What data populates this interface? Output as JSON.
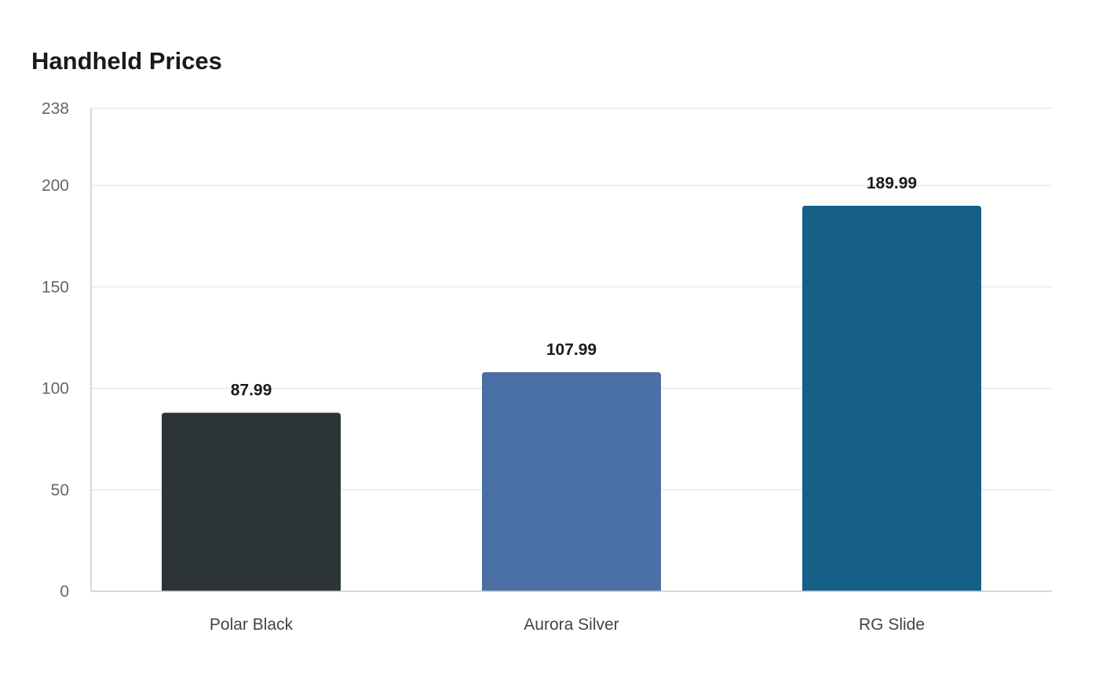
{
  "chart_data": {
    "type": "bar",
    "title": "Handheld Prices",
    "xlabel": "",
    "ylabel": "",
    "categories": [
      "Polar Black",
      "Aurora Silver",
      "RG Slide"
    ],
    "values": [
      87.99,
      107.99,
      189.99
    ],
    "value_labels": [
      "87.99",
      "107.99",
      "189.99"
    ],
    "colors": [
      "#2d3436",
      "#4a6fa5",
      "#166088"
    ],
    "ylim": [
      0,
      238
    ],
    "yticks": [
      0,
      50,
      100,
      150,
      200,
      238
    ],
    "grid": true,
    "legend": "none"
  }
}
